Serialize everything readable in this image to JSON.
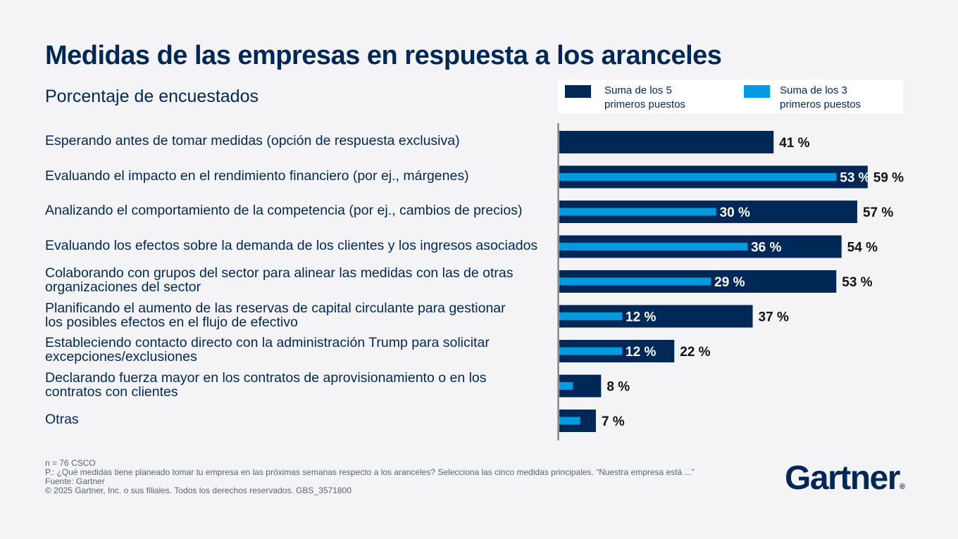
{
  "title": "Medidas de las empresas en respuesta a los aranceles",
  "subtitle": "Porcentaje de encuestados",
  "legend": {
    "top5": "Suma de los 5 primeros puestos",
    "top3": "Suma de los 3 primeros puestos",
    "top5_line1": "Suma de los 5",
    "top5_line2": "primeros puestos",
    "top3_line1": "Suma de los 3",
    "top3_line2": "primeros puestos"
  },
  "colors": {
    "top5": "#002856",
    "top3": "#009bde",
    "axis": "#6d6d6d"
  },
  "chart_data": {
    "type": "bar",
    "orientation": "horizontal",
    "categories": [
      "Esperando antes de tomar medidas (opción de respuesta exclusiva)",
      "Evaluando el impacto en el rendimiento financiero (por ej., márgenes)",
      "Analizando el comportamiento de la competencia (por ej., cambios de precios)",
      "Evaluando los efectos sobre la demanda de los clientes y los ingresos asociados",
      "Colaborando con grupos del sector para alinear las medidas con las de otras organizaciones del sector",
      "Planificando el aumento de las reservas de capital circulante para gestionar los posibles efectos en el flujo de efectivo",
      "Estableciendo contacto directo con la administración Trump para solicitar excepciones/exclusiones",
      "Declarando fuerza mayor en los contratos de aprovisionamiento o en los contratos con clientes",
      "Otras"
    ],
    "category_lines": [
      [
        "Esperando antes de tomar medidas (opción de respuesta exclusiva)"
      ],
      [
        "Evaluando el impacto en el rendimiento financiero (por ej., márgenes)"
      ],
      [
        "Analizando el comportamiento de la competencia (por ej., cambios de precios)"
      ],
      [
        "Evaluando los efectos sobre la demanda de los clientes y los ingresos asociados"
      ],
      [
        "Colaborando con grupos del sector para alinear las medidas con las de otras",
        "organizaciones del sector"
      ],
      [
        "Planificando el aumento de las reservas de capital circulante para gestionar",
        "los posibles efectos en el flujo de efectivo"
      ],
      [
        "Estableciendo contacto directo con la administración Trump para solicitar",
        "excepciones/exclusiones"
      ],
      [
        "Declarando fuerza mayor en los contratos de aprovisionamiento o en los",
        "contratos con clientes"
      ],
      [
        "Otras"
      ]
    ],
    "series": [
      {
        "name": "Suma de los 5 primeros puestos",
        "values": [
          41,
          59,
          57,
          54,
          53,
          37,
          22,
          8,
          7
        ],
        "labels": [
          "41 %",
          "59 %",
          "57 %",
          "54 %",
          "53 %",
          "37 %",
          "22 %",
          "8 %",
          "7 %"
        ]
      },
      {
        "name": "Suma de los 3 primeros puestos",
        "values": [
          null,
          53,
          30,
          36,
          29,
          12,
          12,
          2.6,
          4
        ],
        "labels": [
          "",
          "53 %",
          "30 %",
          "36 %",
          "29 %",
          "12 %",
          "12 %",
          "",
          ""
        ]
      }
    ],
    "xlim": [
      0,
      66
    ],
    "grid": false,
    "legend_position": "top-right"
  },
  "footer": {
    "n": "n = 76 CSCO",
    "question": "P.: ¿Qué medidas tiene planeado tomar tu empresa en las próximas semanas respecto a los aranceles? Selecciona las cinco medidas principales.  “Nuestra empresa está ...”",
    "source": "Fuente: Gartner",
    "copyright": "© 2025 Gartner, Inc. o sus filiales. Todos los derechos reservados. GBS_3571800"
  },
  "logo": {
    "text": "Gartner",
    "mark": "®"
  }
}
